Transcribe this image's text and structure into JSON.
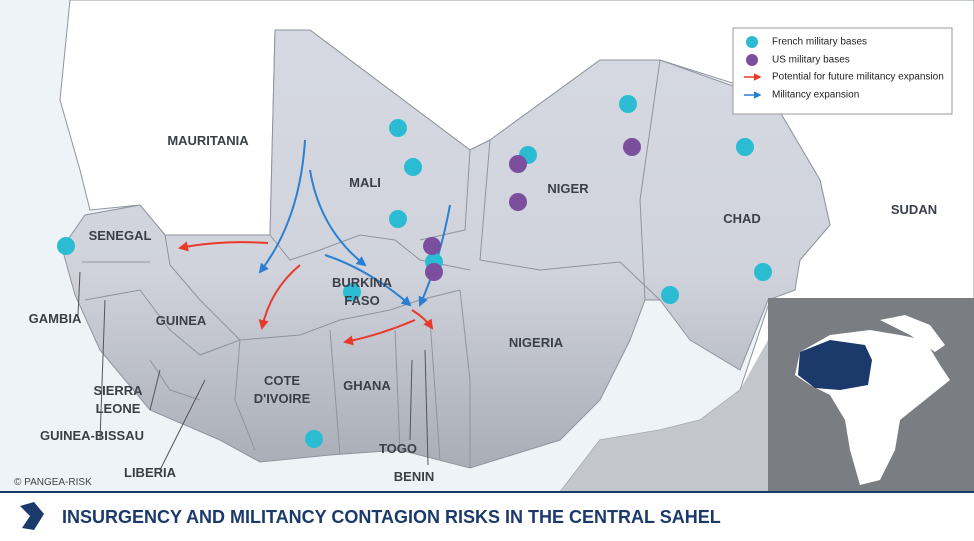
{
  "title": "INSURGENCY AND MILITANCY CONTAGION RISKS IN THE CENTRAL SAHEL",
  "copyright": "© PANGEA-RISK",
  "legend": [
    "French military bases",
    "US military bases",
    "Potential for future militancy expansion",
    "Militancy expansion"
  ],
  "countries": [
    [
      "MAURITANIA"
    ],
    [
      "MALI"
    ],
    [
      "NIGER"
    ],
    [
      "CHAD"
    ],
    [
      "SUDAN"
    ],
    [
      "SENEGAL"
    ],
    [
      "GAMBIA"
    ],
    [
      "GUINEA"
    ],
    [
      "BURKINA",
      "FASO"
    ],
    [
      "NIGERIA"
    ],
    [
      "SIERRA",
      "LEONE"
    ],
    [
      "COTE",
      "D'IVOIRE"
    ],
    [
      "GHANA"
    ],
    [
      "GUINEA-BISSAU"
    ],
    [
      "TOGO"
    ],
    [
      "LIBERIA"
    ],
    [
      "BENIN"
    ]
  ]
}
